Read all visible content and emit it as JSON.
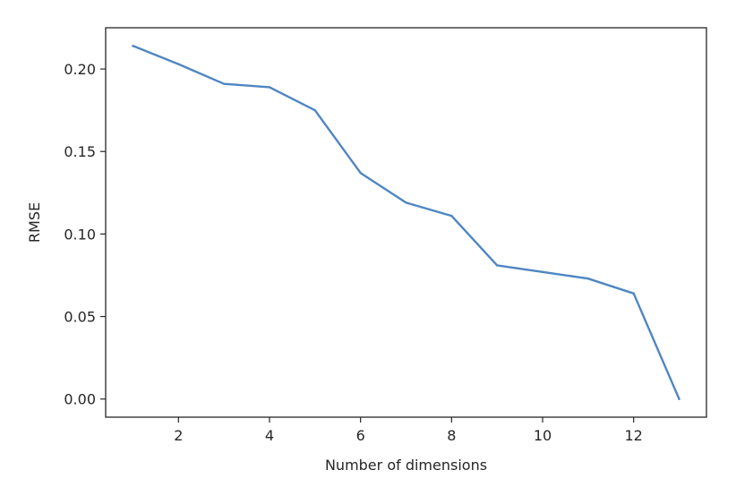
{
  "chart_data": {
    "type": "line",
    "title": "",
    "xlabel": "Number of dimensions",
    "ylabel": "RMSE",
    "xlim": [
      0.4,
      13.6
    ],
    "ylim": [
      -0.011,
      0.225
    ],
    "grid": false,
    "x_ticks": [
      2,
      4,
      6,
      8,
      10,
      12
    ],
    "x_tick_labels": [
      "2",
      "4",
      "6",
      "8",
      "10",
      "12"
    ],
    "y_ticks": [
      0.0,
      0.05,
      0.1,
      0.15,
      0.2
    ],
    "y_tick_labels": [
      "0.00",
      "0.05",
      "0.10",
      "0.15",
      "0.20"
    ],
    "series": [
      {
        "color": "#4f86c2",
        "x": [
          1,
          2,
          3,
          4,
          5,
          6,
          7,
          8,
          9,
          10,
          11,
          12,
          13
        ],
        "values": [
          0.214,
          0.203,
          0.191,
          0.189,
          0.175,
          0.137,
          0.119,
          0.111,
          0.081,
          0.077,
          0.073,
          0.064,
          0.0
        ]
      }
    ]
  }
}
